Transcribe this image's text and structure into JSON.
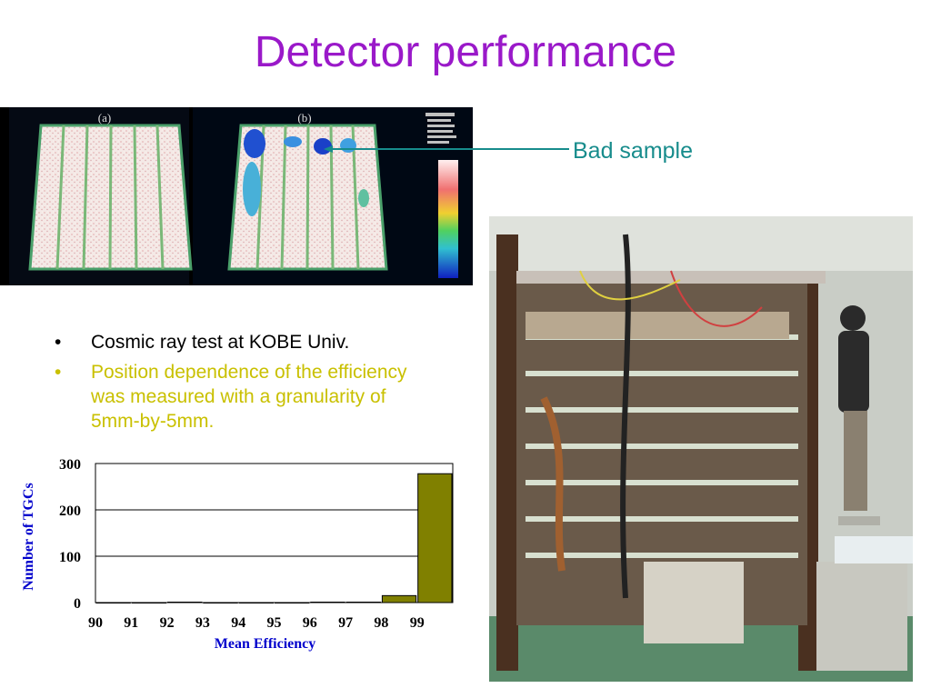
{
  "slide": {
    "title": "Detector performance",
    "callout": "Bad sample",
    "bullets": [
      "Cosmic ray test at KOBE Univ.",
      "Position dependence of the efficiency was measured with a granularity of 5mm-by-5mm."
    ],
    "panel_labels": [
      "(a)",
      "(b)"
    ],
    "colors": {
      "title": "#9a19c9",
      "callout": "#178c8c",
      "bullet2": "#c9c000",
      "bars": "#808000",
      "axis_labels": "#0000cc"
    }
  },
  "chart_data": {
    "type": "bar",
    "categories": [
      "90",
      "91",
      "92",
      "93",
      "94",
      "95",
      "96",
      "97",
      "98",
      "99"
    ],
    "values": [
      0,
      0,
      1,
      0,
      0,
      0,
      1,
      1,
      15,
      278
    ],
    "xlabel": "Mean Efficiency",
    "ylabel": "Number of TGCs",
    "yticks": [
      "0",
      "100",
      "200",
      "300"
    ],
    "ylim": [
      0,
      300
    ],
    "grid": true
  }
}
